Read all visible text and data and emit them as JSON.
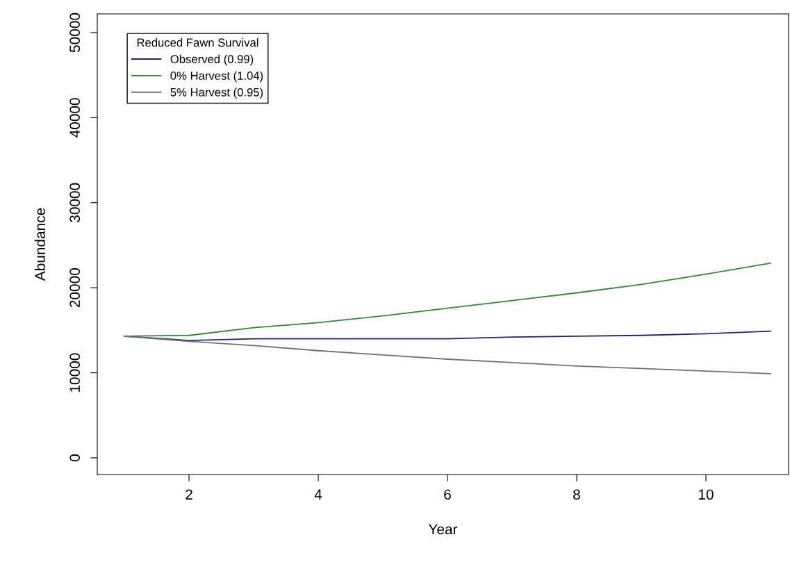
{
  "chart_data": {
    "type": "line",
    "xlabel": "Year",
    "ylabel": "Abundance",
    "legend_title": "Reduced Fawn Survival",
    "x": [
      1,
      2,
      3,
      4,
      5,
      6,
      7,
      8,
      9,
      10,
      11
    ],
    "series": [
      {
        "name": "Observed (0.99)",
        "color": "#1f1f8f",
        "values": [
          14300,
          13800,
          14000,
          14000,
          14000,
          14000,
          14200,
          14300,
          14400,
          14600,
          14900
        ]
      },
      {
        "name": "0% Harvest (1.04)",
        "color": "#2e8b2e",
        "values": [
          14300,
          14400,
          15300,
          15900,
          16700,
          17600,
          18500,
          19400,
          20400,
          21600,
          22900
        ]
      },
      {
        "name": "5% Harvest (0.95)",
        "color": "#707070",
        "values": [
          14300,
          13700,
          13200,
          12600,
          12100,
          11600,
          11200,
          10800,
          10500,
          10200,
          9900
        ]
      }
    ],
    "xlim": [
      0.58,
      11.28
    ],
    "ylim": [
      -1960,
      52200
    ],
    "xticks": [
      2,
      4,
      6,
      8,
      10
    ],
    "yticks": [
      0,
      10000,
      20000,
      30000,
      40000,
      50000
    ],
    "grid": false,
    "legend": "top left",
    "marker": "none",
    "line_style": "solid"
  }
}
